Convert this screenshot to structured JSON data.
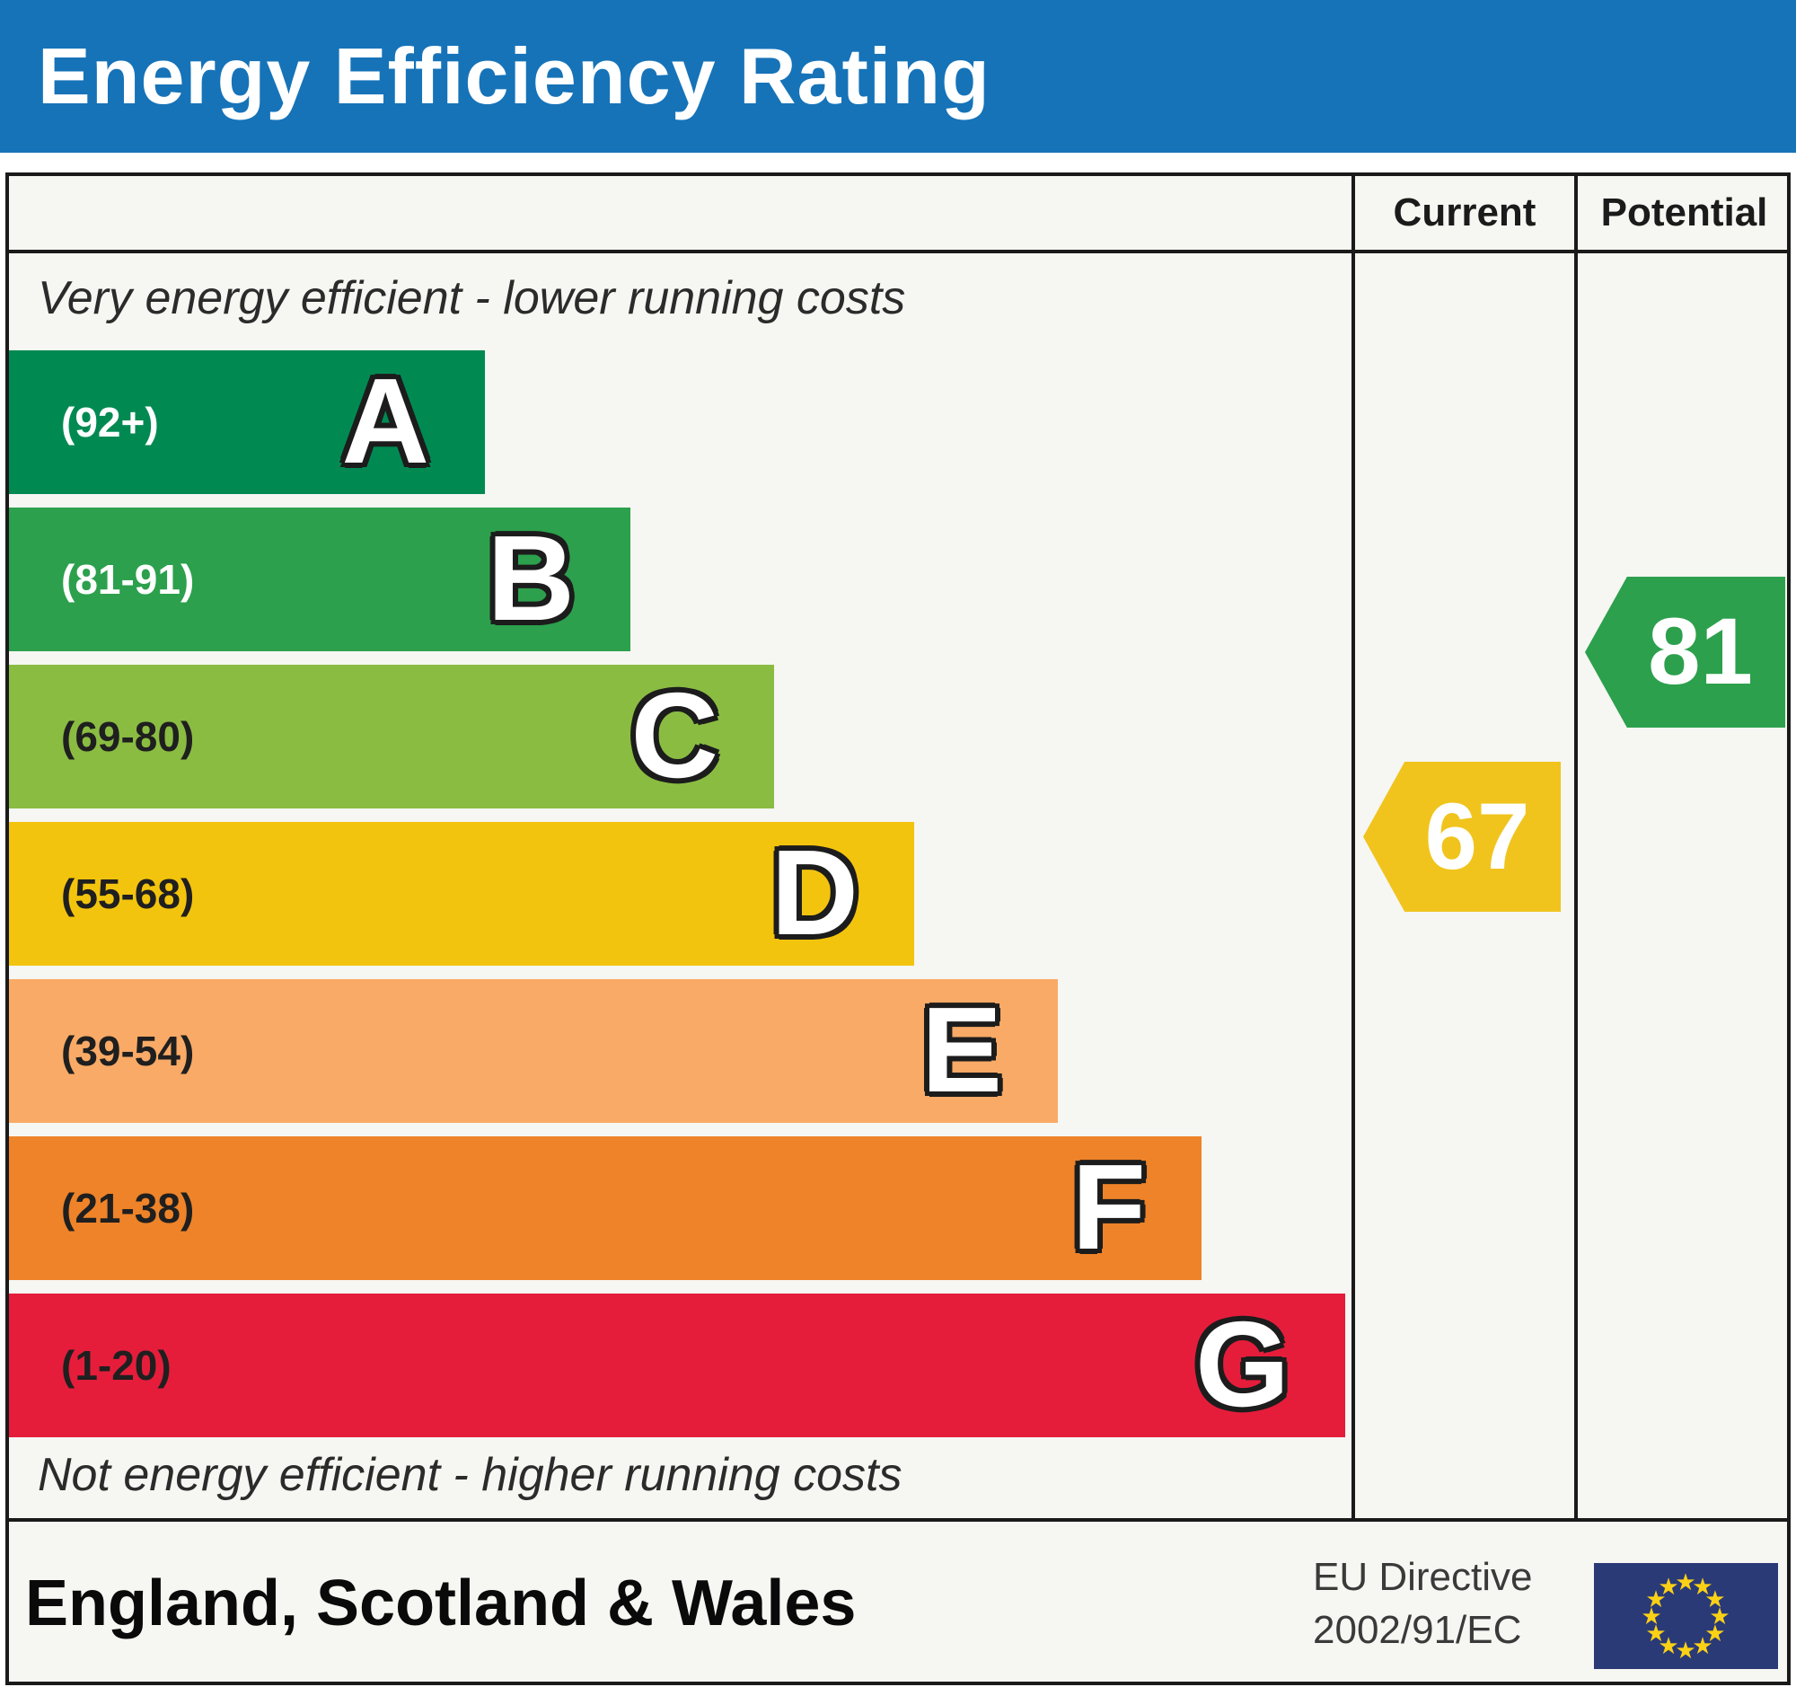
{
  "title": "Energy Efficiency Rating",
  "columns": {
    "current": "Current",
    "potential": "Potential"
  },
  "captions": {
    "top": "Very energy efficient - lower running costs",
    "bottom": "Not energy efficient - higher running costs"
  },
  "bands": [
    {
      "letter": "A",
      "range": "(92+)",
      "color": "#008a52",
      "label_style": "light-label"
    },
    {
      "letter": "B",
      "range": "(81-91)",
      "color": "#2ca04d",
      "label_style": "light-label"
    },
    {
      "letter": "C",
      "range": "(69-80)",
      "color": "#8abc42",
      "label_style": "dark-label"
    },
    {
      "letter": "D",
      "range": "(55-68)",
      "color": "#f3c40e",
      "label_style": "dark-label"
    },
    {
      "letter": "E",
      "range": "(39-54)",
      "color": "#f9aa66",
      "label_style": "dark-label"
    },
    {
      "letter": "F",
      "range": "(21-38)",
      "color": "#ee8329",
      "label_style": "dark-label"
    },
    {
      "letter": "G",
      "range": "(1-20)",
      "color": "#e51d3b",
      "label_style": "dark-label"
    }
  ],
  "indicators": {
    "current": {
      "value": "67",
      "color": "#f0c41d"
    },
    "potential": {
      "value": "81",
      "color": "#2ca04d"
    }
  },
  "footer": {
    "region": "England, Scotland & Wales",
    "directive_line1": "EU Directive",
    "directive_line2": "2002/91/EC"
  },
  "colors": {
    "header_blue": "#1673b8",
    "flag_navy": "#2a3a77",
    "flag_star": "#fbd116",
    "border_black": "#1a1a1a"
  },
  "chart_data": {
    "type": "bar",
    "title": "Energy Efficiency Rating",
    "categories": [
      "A",
      "B",
      "C",
      "D",
      "E",
      "F",
      "G"
    ],
    "band_score_ranges": [
      "92+",
      "81-91",
      "69-80",
      "55-68",
      "39-54",
      "21-38",
      "1-20"
    ],
    "band_colors": [
      "#008a52",
      "#2ca04d",
      "#8abc42",
      "#f3c40e",
      "#f9aa66",
      "#ee8329",
      "#e51d3b"
    ],
    "relative_bar_lengths": [
      0.36,
      0.47,
      0.57,
      0.68,
      0.78,
      0.89,
      1.0
    ],
    "columns": [
      "Current",
      "Potential"
    ],
    "current": {
      "value": 67,
      "band": "D"
    },
    "potential": {
      "value": 81,
      "band": "B"
    },
    "top_caption": "Very energy efficient - lower running costs",
    "bottom_caption": "Not energy efficient - higher running costs",
    "region": "England, Scotland & Wales",
    "directive": "EU Directive 2002/91/EC",
    "legend_position": "none",
    "grid": false
  }
}
